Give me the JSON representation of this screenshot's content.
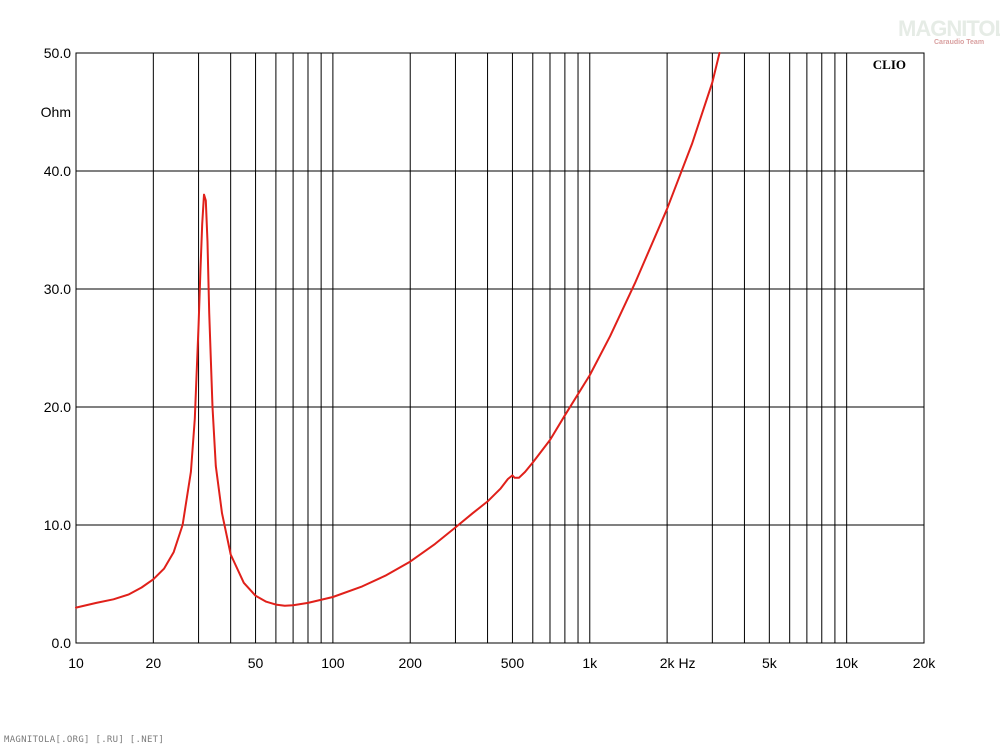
{
  "chart_data": {
    "type": "line",
    "title": "",
    "xlabel": "Hz",
    "ylabel": "Ohm",
    "x_scale": "log",
    "xlim": [
      10,
      20000
    ],
    "ylim": [
      0,
      50
    ],
    "grid": true,
    "x_ticks": [
      {
        "value": 10,
        "label": "10"
      },
      {
        "value": 20,
        "label": "20"
      },
      {
        "value": 50,
        "label": "50"
      },
      {
        "value": 100,
        "label": "100"
      },
      {
        "value": 200,
        "label": "200"
      },
      {
        "value": 500,
        "label": "500"
      },
      {
        "value": 1000,
        "label": "1k"
      },
      {
        "value": 2000,
        "label": "2k"
      },
      {
        "value": 5000,
        "label": "5k"
      },
      {
        "value": 10000,
        "label": "10k"
      },
      {
        "value": 20000,
        "label": "20k"
      }
    ],
    "y_ticks": [
      {
        "value": 0,
        "label": "0.0"
      },
      {
        "value": 10,
        "label": "10.0"
      },
      {
        "value": 20,
        "label": "20.0"
      },
      {
        "value": 30,
        "label": "30.0"
      },
      {
        "value": 40,
        "label": "40.0"
      },
      {
        "value": 50,
        "label": "50.0"
      }
    ],
    "series": [
      {
        "color": "#e0201a",
        "x": [
          10,
          12,
          14,
          16,
          18,
          20,
          22,
          24,
          26,
          28,
          29,
          30,
          30.5,
          31,
          31.5,
          32,
          32.5,
          33,
          34,
          35,
          37,
          40,
          45,
          50,
          55,
          60,
          65,
          70,
          80,
          100,
          130,
          160,
          200,
          250,
          300,
          350,
          400,
          450,
          480,
          500,
          510,
          530,
          560,
          600,
          700,
          800,
          1000,
          1200,
          1500,
          2000,
          2500,
          3000,
          3200
        ],
        "y": [
          3.0,
          3.4,
          3.7,
          4.1,
          4.7,
          5.4,
          6.3,
          7.7,
          10.0,
          14.5,
          19.0,
          27.0,
          31.5,
          35.5,
          38.0,
          37.5,
          34.0,
          28.0,
          20.0,
          15.0,
          11.0,
          7.5,
          5.1,
          4.0,
          3.5,
          3.25,
          3.15,
          3.2,
          3.4,
          3.9,
          4.8,
          5.7,
          6.9,
          8.4,
          9.8,
          11.0,
          12.0,
          13.1,
          13.9,
          14.2,
          14.0,
          14.0,
          14.5,
          15.3,
          17.2,
          19.3,
          22.7,
          26.0,
          30.5,
          36.8,
          42.3,
          47.5,
          50.0
        ]
      }
    ]
  },
  "labels": {
    "brand": "CLIO",
    "logo_main": "MAGNITOLA",
    "logo_sub": "Caraudio Team",
    "footer": "MAGNITOLA[.ORG] [.RU] [.NET]"
  }
}
